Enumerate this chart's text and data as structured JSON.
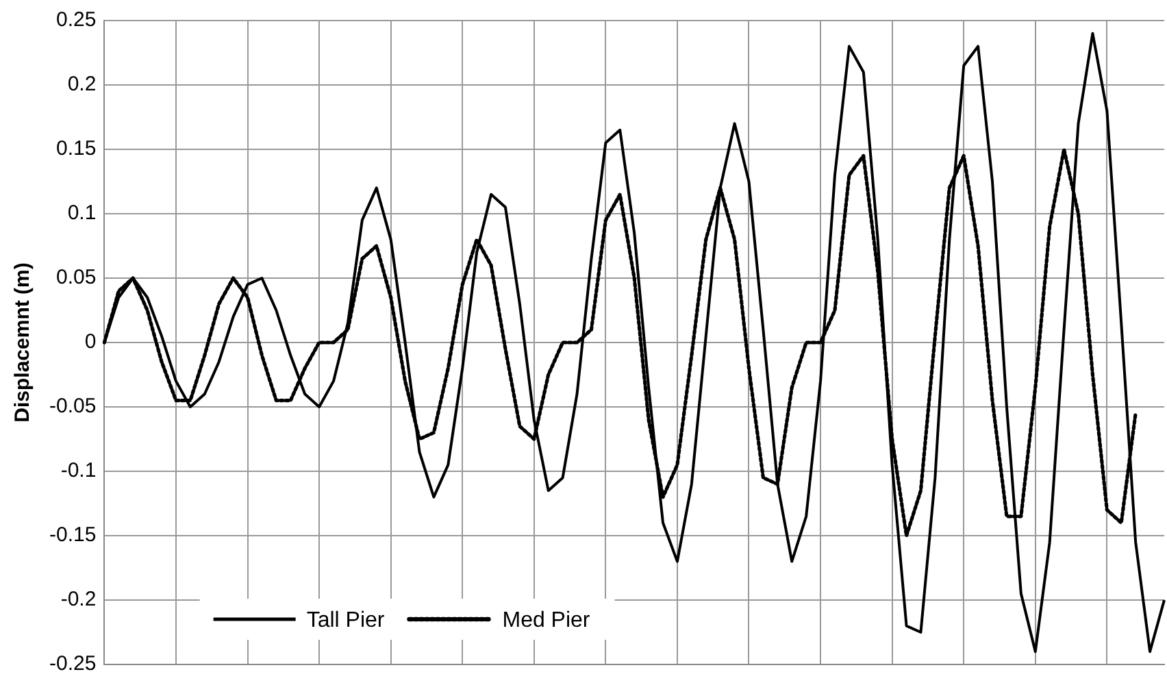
{
  "chart_data": {
    "type": "line",
    "ylabel": "Displacemnt (m)",
    "categories": [
      null,
      null,
      null,
      null,
      null,
      null,
      null,
      null,
      null,
      null,
      null,
      null,
      null,
      null,
      null,
      null,
      null,
      null,
      null,
      null,
      null,
      null,
      null,
      null,
      null,
      null,
      null,
      null,
      null,
      null,
      null,
      null,
      null,
      null,
      null,
      null,
      null,
      null,
      null,
      null,
      null,
      null,
      null,
      null,
      null,
      null,
      null,
      null,
      null,
      null,
      null,
      null,
      null,
      null,
      null,
      null,
      null,
      null,
      null,
      null,
      null,
      null,
      null,
      null,
      null,
      null,
      null,
      null,
      null,
      null,
      null,
      null,
      null,
      null,
      null
    ],
    "ylim": [
      -0.25,
      0.25
    ],
    "yticks": [
      -0.25,
      -0.2,
      -0.15,
      -0.1,
      -0.05,
      0,
      0.05,
      0.1,
      0.15,
      0.2,
      0.25
    ],
    "grid": true,
    "legend": "bottom left",
    "tick_labels": "y",
    "marker": "none",
    "series": [
      {
        "name": "Tall Pier",
        "color": "#000000",
        "line_style": "solid",
        "values": [
          0,
          0.035,
          0.05,
          0.035,
          0.005,
          -0.03,
          -0.05,
          -0.04,
          -0.015,
          0.02,
          0.045,
          0.05,
          0.025,
          -0.01,
          -0.04,
          -0.05,
          -0.03,
          0.015,
          0.095,
          0.12,
          0.08,
          0,
          -0.085,
          -0.12,
          -0.095,
          -0.02,
          0.07,
          0.115,
          0.105,
          0.03,
          -0.06,
          -0.115,
          -0.105,
          -0.04,
          0.065,
          0.155,
          0.165,
          0.085,
          -0.035,
          -0.14,
          -0.17,
          -0.11,
          0.005,
          0.12,
          0.17,
          0.125,
          0.01,
          -0.11,
          -0.17,
          -0.135,
          -0.03,
          0.13,
          0.23,
          0.21,
          0.08,
          -0.095,
          -0.22,
          -0.225,
          -0.105,
          0.08,
          0.215,
          0.23,
          0.125,
          -0.05,
          -0.195,
          -0.24,
          -0.155,
          0.01,
          0.17,
          0.24,
          0.18,
          0.015,
          -0.155,
          -0.24,
          -0.2
        ]
      },
      {
        "name": "Med Pier",
        "color": "#000000",
        "line_style": "dotted",
        "values": [
          0,
          0.04,
          0.05,
          0.025,
          -0.015,
          -0.045,
          -0.045,
          -0.01,
          0.03,
          0.05,
          0.035,
          -0.01,
          -0.045,
          -0.045,
          -0.02,
          0,
          0,
          0.01,
          0.065,
          0.075,
          0.035,
          -0.03,
          -0.075,
          -0.07,
          -0.02,
          0.045,
          0.08,
          0.06,
          -0.005,
          -0.065,
          -0.075,
          -0.025,
          0,
          0,
          0.01,
          0.095,
          0.115,
          0.05,
          -0.06,
          -0.12,
          -0.095,
          -0.01,
          0.08,
          0.12,
          0.08,
          -0.02,
          -0.105,
          -0.11,
          -0.035,
          0,
          0,
          0.025,
          0.13,
          0.145,
          0.055,
          -0.075,
          -0.15,
          -0.115,
          0.005,
          0.12,
          0.145,
          0.075,
          -0.045,
          -0.135,
          -0.135,
          -0.035,
          0.09,
          0.15,
          0.1,
          -0.025,
          -0.13,
          -0.14,
          -0.055,
          null,
          null
        ]
      }
    ]
  }
}
